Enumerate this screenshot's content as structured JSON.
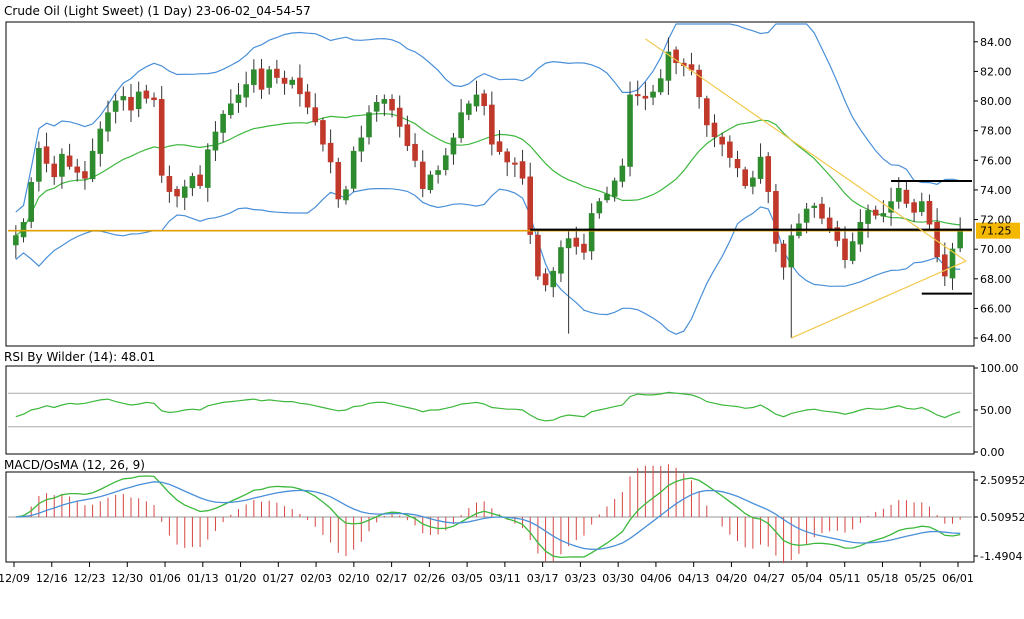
{
  "chart_data": [
    {
      "type": "candlestick",
      "title": "Crude Oil (Light Sweet) (1 Day) 23-06-02_04-54-57",
      "current_price": "71.25",
      "y_ticks": [
        "84.00",
        "82.00",
        "80.00",
        "78.00",
        "76.00",
        "74.00",
        "72.00",
        "70.00",
        "68.00",
        "66.00",
        "64.00"
      ],
      "ylim": [
        63.6,
        85.2
      ],
      "x_ticks": [
        "12/09",
        "12/16",
        "12/23",
        "12/30",
        "01/06",
        "01/13",
        "01/20",
        "01/27",
        "02/03",
        "02/10",
        "02/17",
        "02/26",
        "03/05",
        "03/11",
        "03/17",
        "03/23",
        "03/30",
        "04/06",
        "04/13",
        "04/20",
        "04/27",
        "05/04",
        "05/11",
        "05/18",
        "05/25",
        "06/01"
      ],
      "colors": {
        "up": "#2e8b2e",
        "down": "#c0392b",
        "bollinger_outer": "#4a90d9",
        "bollinger_mid": "#3cb83c",
        "trend_lines": "#f2c94c",
        "price_line": "#e0a000",
        "levels": "#000000"
      },
      "close": [
        70.9,
        71.8,
        74.5,
        76.8,
        75.8,
        74.9,
        76.4,
        75.6,
        75.2,
        74.8,
        76.6,
        78.1,
        79.2,
        80.0,
        80.3,
        79.4,
        80.6,
        80.2,
        80.1,
        75.0,
        73.9,
        73.6,
        74.2,
        74.9,
        74.3,
        76.7,
        77.9,
        79.1,
        79.8,
        80.4,
        81.1,
        82.1,
        80.8,
        82.1,
        81.6,
        81.2,
        81.4,
        80.5,
        79.6,
        78.6,
        77.1,
        75.9,
        73.4,
        74.0,
        76.6,
        77.5,
        79.2,
        79.9,
        80.1,
        79.4,
        78.3,
        77.0,
        76.0,
        74.1,
        75.0,
        75.3,
        76.3,
        77.5,
        79.2,
        79.8,
        80.4,
        79.7,
        77.1,
        76.6,
        75.9,
        75.8,
        74.8,
        71.0,
        68.2,
        67.6,
        68.5,
        70.1,
        70.7,
        70.2,
        69.8,
        72.4,
        73.2,
        73.7,
        74.6,
        75.6,
        80.4,
        80.4,
        80.2,
        80.6,
        81.5,
        83.3,
        82.6,
        82.4,
        82.1,
        80.3,
        78.4,
        77.6,
        77.1,
        76.2,
        75.5,
        74.3,
        74.8,
        76.2,
        73.9,
        70.4,
        68.8,
        70.9,
        71.7,
        72.7,
        72.9,
        72.1,
        71.3,
        70.6,
        69.3,
        70.5,
        71.8,
        72.6,
        72.3,
        72.4,
        73.2,
        74.1,
        73.1,
        72.5,
        73.2,
        71.7,
        69.5,
        68.2,
        70.0,
        71.3
      ],
      "bollinger_period": 20,
      "bollinger_k": 2,
      "horizontal_levels": [
        74.6,
        71.25,
        67.0
      ],
      "pivot_index": 82
    },
    {
      "type": "line",
      "title": "RSI By Wilder (14): 48.01",
      "series": [
        {
          "values": [
            42,
            45,
            50,
            52,
            55,
            53,
            56,
            58,
            57,
            58,
            60,
            62,
            63,
            60,
            58,
            56,
            57,
            59,
            58,
            49,
            47,
            48,
            50,
            51,
            50,
            55,
            57,
            59,
            60,
            61,
            62,
            63,
            61,
            62,
            61,
            60,
            60,
            58,
            57,
            55,
            53,
            51,
            49,
            50,
            54,
            55,
            58,
            59,
            59,
            57,
            55,
            53,
            51,
            48,
            50,
            50,
            52,
            54,
            57,
            58,
            59,
            57,
            53,
            52,
            51,
            51,
            50,
            44,
            39,
            37,
            38,
            42,
            44,
            43,
            42,
            48,
            50,
            52,
            54,
            56,
            66,
            69,
            68,
            68,
            69,
            71,
            70,
            69,
            68,
            65,
            60,
            58,
            56,
            55,
            54,
            52,
            53,
            56,
            51,
            45,
            42,
            46,
            48,
            50,
            51,
            49,
            48,
            47,
            45,
            47,
            50,
            52,
            51,
            51,
            53,
            55,
            52,
            51,
            53,
            49,
            44,
            41,
            45,
            48
          ]
        }
      ],
      "y_ticks": [
        "100.00",
        "50.00",
        "0.00"
      ],
      "ylim": [
        0,
        100
      ]
    },
    {
      "type": "macd",
      "title": "MACD/OsMA (12, 26, 9)",
      "y_ticks": [
        "2.50952",
        "0.50952",
        "-1.4904"
      ]
    }
  ]
}
